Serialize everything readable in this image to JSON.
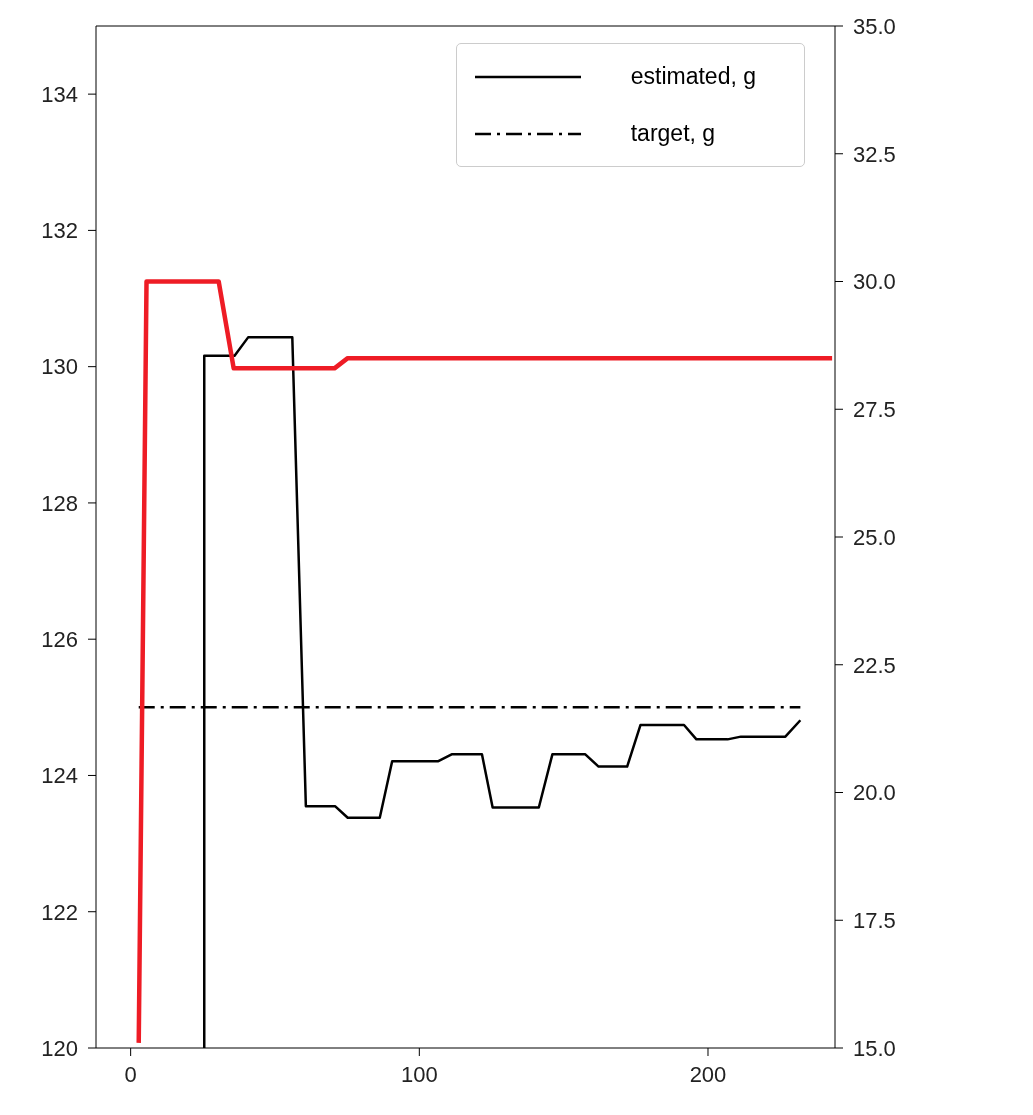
{
  "chart_data": {
    "type": "line",
    "xlim": [
      -12,
      244
    ],
    "xticks": [
      0,
      100,
      200
    ],
    "ylim": [
      120,
      135
    ],
    "yticks": [
      120,
      122,
      124,
      126,
      128,
      130,
      132,
      134
    ],
    "y2lim": [
      15,
      35
    ],
    "y2ticks": [
      {
        "value": 15,
        "label": "15.0"
      },
      {
        "value": 17.5,
        "label": "17.5"
      },
      {
        "value": 20,
        "label": "20.0"
      },
      {
        "value": 22.5,
        "label": "22.5"
      },
      {
        "value": 25,
        "label": "25.0"
      },
      {
        "value": 27.5,
        "label": "27.5"
      },
      {
        "value": 30,
        "label": "30.0"
      },
      {
        "value": 32.5,
        "label": "32.5"
      },
      {
        "value": 35,
        "label": "35.0"
      }
    ],
    "series": [
      {
        "name": "estimated, g",
        "color": "#000000",
        "line_style": "solid",
        "x": [
          25.5,
          25.5,
          36,
          40.7,
          56,
          60.7,
          70.8,
          75.2,
          86.3,
          90.6,
          106.6,
          111.2,
          121.7,
          125.4,
          141.4,
          146.1,
          157.5,
          162.1,
          172,
          176.6,
          191.7,
          196,
          206.8,
          211.4,
          226.8,
          232
        ],
        "values": [
          120,
          130.16,
          130.16,
          130.43,
          130.43,
          123.55,
          123.55,
          123.38,
          123.38,
          124.21,
          124.21,
          124.31,
          124.31,
          123.53,
          123.53,
          124.31,
          124.31,
          124.13,
          124.13,
          124.74,
          124.74,
          124.53,
          124.53,
          124.57,
          124.57,
          124.81
        ]
      },
      {
        "name": "target, g",
        "color": "#000000",
        "line_style": "dashdot",
        "x": [
          2.8,
          232
        ],
        "values": [
          125,
          125
        ]
      },
      {
        "color": "#ee1c25",
        "axis": "y2",
        "line_style": "solid",
        "x": [
          2.8,
          5.5,
          30.5,
          35.7,
          70.6,
          75.2,
          243
        ],
        "values": [
          15.1,
          30,
          30,
          28.3,
          28.3,
          28.5,
          28.5
        ]
      }
    ],
    "grid": false,
    "legend": "top right",
    "marker": "none"
  }
}
